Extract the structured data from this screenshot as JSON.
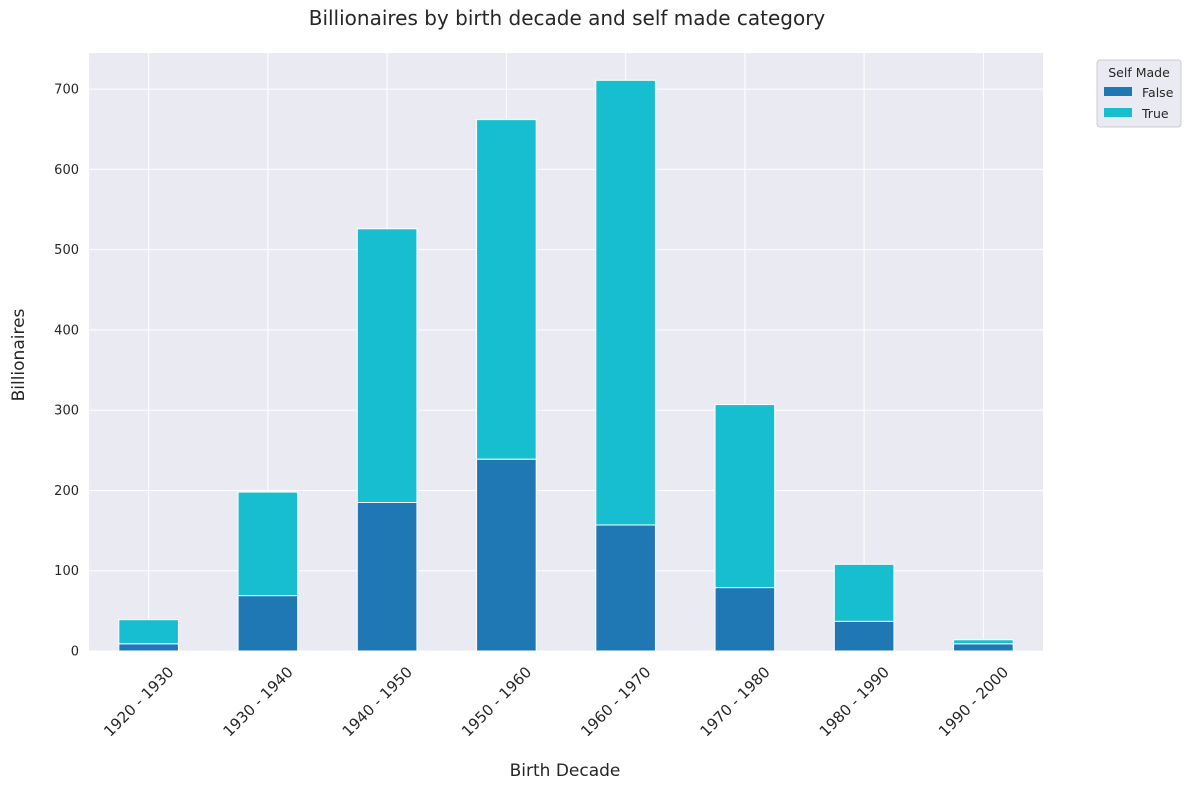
{
  "chart_data": {
    "type": "bar",
    "stacked": true,
    "title": "Billionaires by birth decade and self made category",
    "xlabel": "Birth Decade",
    "ylabel": "Billionaires",
    "categories": [
      "1920 - 1930",
      "1930 - 1940",
      "1940 - 1950",
      "1950 - 1960",
      "1960 - 1970",
      "1970 - 1980",
      "1980 - 1990",
      "1990 - 2000"
    ],
    "series": [
      {
        "name": "False",
        "color": "#1f77b4",
        "values": [
          9,
          69,
          185,
          239,
          157,
          79,
          37,
          9
        ]
      },
      {
        "name": "True",
        "color": "#17becf",
        "values": [
          30,
          129,
          341,
          423,
          554,
          228,
          71,
          5
        ]
      }
    ],
    "ylim": [
      0,
      745
    ],
    "yticks": [
      0,
      100,
      200,
      300,
      400,
      500,
      600,
      700
    ],
    "grid": true,
    "legend": {
      "title": "Self Made",
      "placement": "outside-top-right"
    }
  }
}
